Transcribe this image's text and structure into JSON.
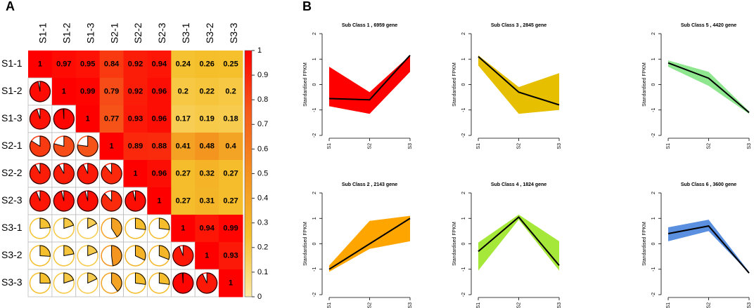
{
  "panels": [
    "A",
    "B"
  ],
  "chart_data": [
    {
      "type": "corrplot",
      "labels": [
        "S1-1",
        "S1-2",
        "S1-3",
        "S2-1",
        "S2-2",
        "S2-3",
        "S3-1",
        "S3-2",
        "S3-3"
      ],
      "values": [
        [
          1,
          0.97,
          0.95,
          0.84,
          0.92,
          0.94,
          0.24,
          0.26,
          0.25
        ],
        [
          1,
          0.99,
          0.79,
          0.92,
          0.96,
          0.2,
          0.22,
          0.2
        ],
        [
          1,
          0.77,
          0.93,
          0.96,
          0.17,
          0.19,
          0.18
        ],
        [
          1,
          0.89,
          0.88,
          0.41,
          0.48,
          0.4
        ],
        [
          1,
          0.96,
          0.27,
          0.32,
          0.27
        ],
        [
          1,
          0.27,
          0.31,
          0.27
        ],
        [
          1,
          0.94,
          0.99
        ],
        [
          1,
          0.93
        ],
        [
          1
        ]
      ],
      "zlim": [
        0,
        1
      ],
      "zticks": [
        0,
        0.1,
        0.2,
        0.3,
        0.4,
        0.5,
        0.6,
        0.7,
        0.8,
        0.9,
        1
      ],
      "colors": [
        "#fdeaa6",
        "#f5c02c",
        "#f4911f",
        "#f55a1b",
        "#ff0000"
      ]
    },
    {
      "type": "line-band",
      "title": "Sub Class 1 , 6959 gene",
      "ylabel": "Standardised FPKM",
      "categories": [
        "S1",
        "S2",
        "S3"
      ],
      "color": "#ff0000",
      "values": [
        -0.55,
        -0.6,
        1.15
      ],
      "upper": [
        0.7,
        -0.3,
        1.15
      ],
      "lower": [
        -0.85,
        -1.15,
        0.5
      ],
      "ylim": [
        -2,
        2
      ],
      "yticks": [
        -2,
        -1,
        0,
        1,
        2
      ]
    },
    {
      "type": "line-band",
      "title": "Sub Class 3 , 2845 gene",
      "ylabel": "Standardised FPKM",
      "categories": [
        "S1",
        "S2",
        "S3"
      ],
      "color": "#e6c000",
      "values": [
        1.1,
        -0.3,
        -0.8
      ],
      "upper": [
        1.15,
        -0.1,
        0.45
      ],
      "lower": [
        0.75,
        -1.15,
        -1.0
      ],
      "ylim": [
        -2,
        2
      ],
      "yticks": [
        -2,
        -1,
        0,
        1,
        2
      ]
    },
    {
      "type": "line-band",
      "title": "Sub Class 5 , 4420 gene",
      "ylabel": "Standardised FPKM",
      "categories": [
        "S1",
        "S2",
        "S3"
      ],
      "color": "#8ee68e",
      "values": [
        0.85,
        0.25,
        -1.1
      ],
      "upper": [
        0.95,
        0.5,
        -1.05
      ],
      "lower": [
        0.7,
        -0.05,
        -1.15
      ],
      "ylim": [
        -2,
        2
      ],
      "yticks": [
        -2,
        -1,
        0,
        1,
        2
      ]
    },
    {
      "type": "line-band",
      "title": "Sub Class 2 , 2143 gene",
      "ylabel": "Standardised FPKM",
      "categories": [
        "S1",
        "S2",
        "S3"
      ],
      "color": "#ffa500",
      "values": [
        -1.0,
        0.0,
        1.0
      ],
      "upper": [
        -0.85,
        0.9,
        1.1
      ],
      "lower": [
        -1.1,
        -0.2,
        0.1
      ],
      "ylim": [
        -2,
        2
      ],
      "yticks": [
        -2,
        -1,
        0,
        1,
        2
      ]
    },
    {
      "type": "line-band",
      "title": "Sub Class 4 , 1824 gene",
      "ylabel": "Standardised FPKM",
      "categories": [
        "S1",
        "S2",
        "S3"
      ],
      "color": "#a6e83a",
      "values": [
        -0.3,
        1.05,
        -0.85
      ],
      "upper": [
        0.05,
        1.15,
        0.1
      ],
      "lower": [
        -1.05,
        0.95,
        -1.05
      ],
      "ylim": [
        -2,
        2
      ],
      "yticks": [
        -2,
        -1,
        0,
        1,
        2
      ]
    },
    {
      "type": "line-band",
      "title": "Sub Class 6 , 3600 gene",
      "ylabel": "Standardised FPKM",
      "categories": [
        "S1",
        "S2",
        "S3"
      ],
      "color": "#5b8fe0",
      "values": [
        0.4,
        0.7,
        -1.15
      ],
      "upper": [
        0.65,
        0.95,
        -1.1
      ],
      "lower": [
        0.1,
        0.5,
        -1.15
      ],
      "ylim": [
        -2,
        2
      ],
      "yticks": [
        -2,
        -1,
        0,
        1,
        2
      ]
    }
  ]
}
